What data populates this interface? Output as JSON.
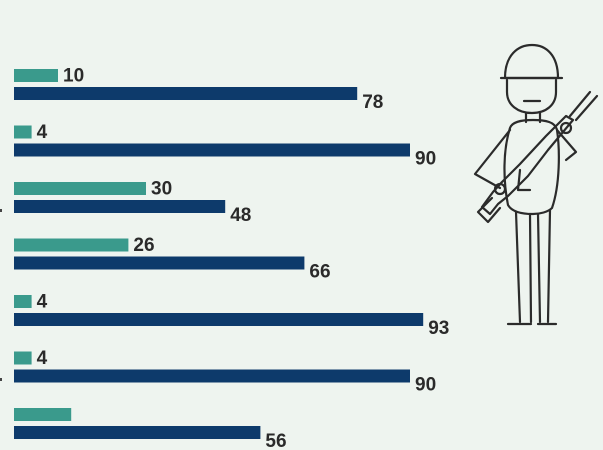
{
  "chart_data": {
    "type": "bar",
    "orientation": "horizontal",
    "series": [
      {
        "color": "#3a9a8c",
        "values": [
          10,
          4,
          30,
          26,
          4,
          4,
          13
        ]
      },
      {
        "color": "#0d3a6b",
        "values": [
          78,
          90,
          48,
          66,
          93,
          90,
          56
        ]
      }
    ],
    "value_labels": {
      "0": [
        "10",
        "4",
        "30",
        "26",
        "4",
        "4",
        ""
      ],
      "1": [
        "78",
        "90",
        "48",
        "66",
        "93",
        "90",
        "56"
      ]
    },
    "xlim": [
      0,
      100
    ],
    "grid": false,
    "legend": "none"
  },
  "illustration": {
    "icon": "soldier-with-rifle-icon",
    "stroke_color": "#2b2b2b"
  }
}
